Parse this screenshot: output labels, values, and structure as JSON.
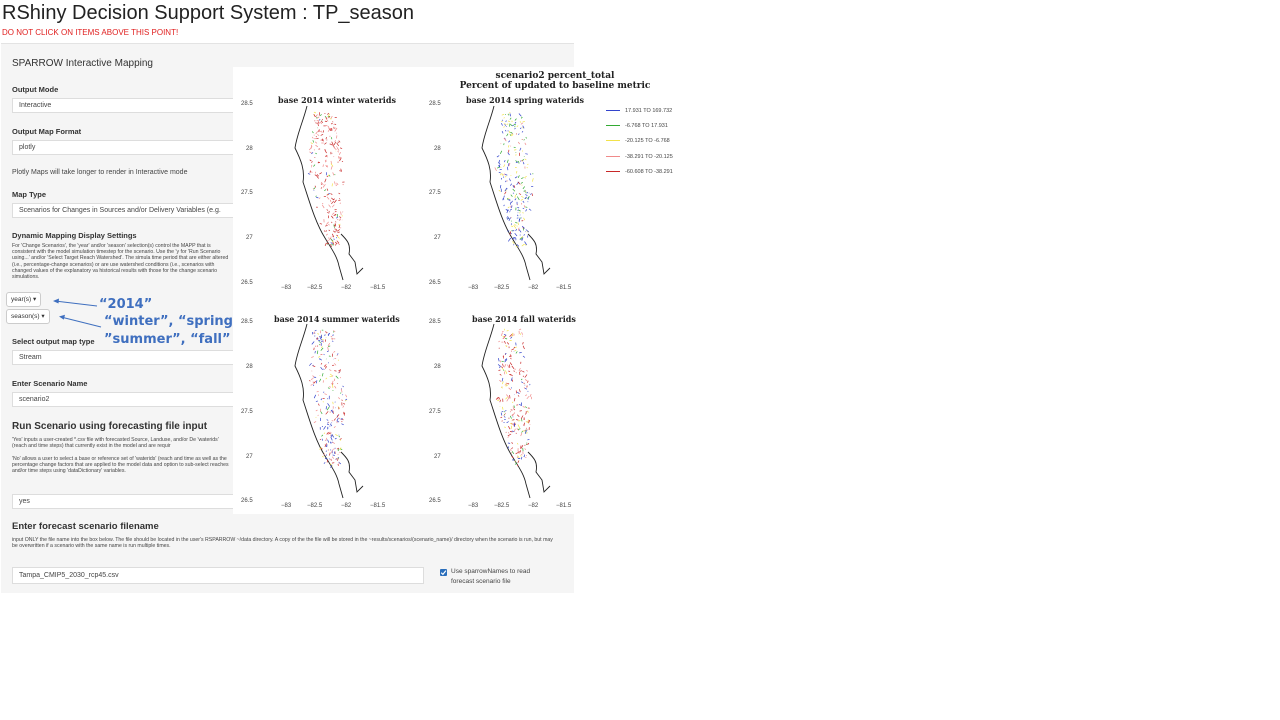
{
  "app_title": "RShiny Decision Support System : TP_season",
  "warning": "DO NOT CLICK ON ITEMS ABOVE THIS POINT!",
  "panel": {
    "title": "SPARROW Interactive Mapping",
    "output_mode": {
      "label": "Output Mode",
      "value": "Interactive"
    },
    "output_map_format": {
      "label": "Output Map Format",
      "value": "plotly"
    },
    "plotly_note": "Plotly Maps will take longer to render in Interactive mode",
    "map_type": {
      "label": "Map Type",
      "value": "Scenarios for Changes in Sources and/or Delivery Variables (e.g."
    },
    "dynamic_settings": {
      "label": "Dynamic Mapping Display Settings",
      "help": "For 'Change Scenarios', the 'year' and/or 'season' selection(s) control the MAPP that is consistent with the model simulation timestep for the scenario. Use the 'y for 'Run Scenario using...' and/or 'Select Target Reach Watershed'. The simula time period that are either altered (i.e., percentage-change scenarios) or are use watershed conditions (i.e., scenarios with changed values of the explanatory va historical results with those for the change scenario simulations."
    },
    "year_dropdown": "year(s)",
    "season_dropdown": "season(s)",
    "output_map_type": {
      "label": "Select output map type",
      "value": "Stream"
    },
    "scenario_name": {
      "label": "Enter Scenario Name",
      "value": "scenario2"
    },
    "forecast_input": {
      "heading": "Run Scenario using forecasting file input",
      "help_yes": "'Yes' inputs a user-created *.csv file with forecasted Source, Landuse, and/or De 'waterids' (reach and time steps) that currently exist in the model and are requir",
      "help_no": "'No' allows a user to select a base or reference set of 'waterids' (reach and time as well as the percentage change factors that are applied to the model data and option to sub-select reaches and/or time steps using 'dataDictionary' variables.",
      "value": "yes"
    },
    "forecast_filename": {
      "heading": "Enter forecast scenario filename",
      "help": "input ONLY the file name into the box below. The file should be located in the user's RSPARROW ~/data directory. A copy of the the file will be stored in the ~results/scenarios/(scenario_name)/ directory when the scenario is run, but may be overwritten if a scenario with the same name is run multiple times.",
      "value": "Tampa_CMIP5_2030_rcp45.csv"
    },
    "checkbox": {
      "label_line1": "Use sparrowNames to read",
      "label_line2": "forecast scenario file",
      "checked": true
    }
  },
  "annotations": {
    "year_values": "“2014”",
    "season_line1": "“winter”, “spring”,",
    "season_line2": "”summer”, “fall”"
  },
  "plot": {
    "title_line1": "scenario2 percent_total",
    "title_line2": "Percent of updated to baseline metric",
    "panels": [
      {
        "title": "base 2014 winter waterids"
      },
      {
        "title": "base 2014 spring waterids"
      },
      {
        "title": "base 2014 summer waterids"
      },
      {
        "title": "base 2014 fall waterids"
      }
    ],
    "y_ticks": [
      "28.5",
      "28",
      "27.5",
      "27",
      "26.5"
    ],
    "x_ticks": [
      "−83",
      "−82.5",
      "−82",
      "−81.5"
    ],
    "legend": [
      {
        "label": "17.931 TO 169.732",
        "color": "#3344cc"
      },
      {
        "label": "-6.768 TO 17.931",
        "color": "#33aa33"
      },
      {
        "label": "-20.125 TO -6.768",
        "color": "#f2e24a"
      },
      {
        "label": "-38.291 TO -20.125",
        "color": "#f08a8a"
      },
      {
        "label": "-60.608 TO -38.291",
        "color": "#c82828"
      }
    ]
  }
}
